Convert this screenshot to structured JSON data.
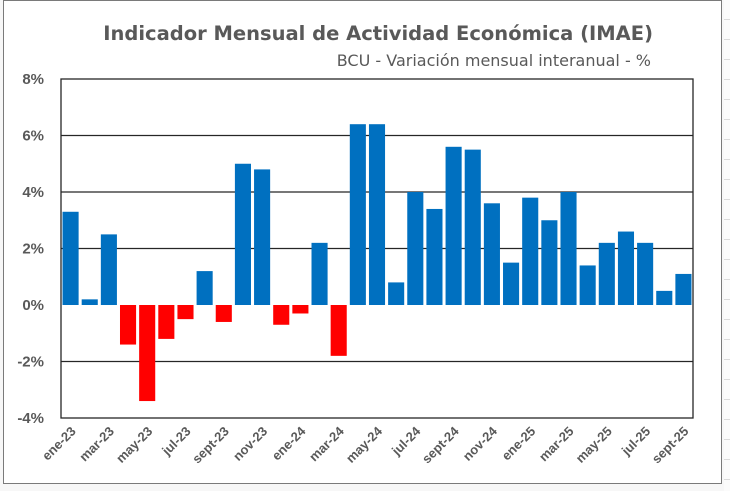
{
  "chart_data": {
    "type": "bar",
    "title": "Indicador Mensual de Actividad Económica (IMAE)",
    "subtitle": "BCU - Variación mensual interanual - %",
    "xlabel": "",
    "ylabel": "",
    "ylim": [
      -4,
      8
    ],
    "yticks": [
      -4,
      -2,
      0,
      2,
      4,
      6,
      8
    ],
    "ytick_labels": [
      "-4%",
      "-2%",
      "0%",
      "2%",
      "4%",
      "6%",
      "8%"
    ],
    "grid": true,
    "legend": "none",
    "colors": {
      "positive": "#0070C0",
      "negative": "#FF0000"
    },
    "categories": [
      "ene-23",
      "feb-23",
      "mar-23",
      "abr-23",
      "may-23",
      "jun-23",
      "jul-23",
      "ago-23",
      "sept-23",
      "oct-23",
      "nov-23",
      "dic-23",
      "ene-24",
      "feb-24",
      "mar-24",
      "abr-24",
      "may-24",
      "jun-24",
      "jul-24",
      "ago-24",
      "sept-24",
      "oct-24",
      "nov-24",
      "dic-24",
      "ene-25",
      "feb-25",
      "mar-25",
      "abr-25",
      "may-25",
      "jun-25",
      "jul-25",
      "ago-25",
      "sept-25"
    ],
    "xtick_labels_shown": [
      "ene-23",
      "mar-23",
      "may-23",
      "jul-23",
      "sept-23",
      "nov-23",
      "ene-24",
      "mar-24",
      "may-24",
      "jul-24",
      "sept-24",
      "nov-24",
      "ene-25",
      "mar-25",
      "may-25",
      "jul-25",
      "sept-25"
    ],
    "values": [
      3.3,
      0.2,
      2.5,
      -1.4,
      -3.4,
      -1.2,
      -0.5,
      1.2,
      -0.6,
      5.0,
      4.8,
      -0.7,
      -0.3,
      2.2,
      -1.8,
      6.4,
      6.4,
      0.8,
      4.0,
      3.4,
      5.6,
      5.5,
      3.6,
      1.5,
      3.8,
      3.0,
      4.0,
      1.4,
      2.2,
      2.6,
      2.2,
      0.5,
      1.1
    ]
  }
}
